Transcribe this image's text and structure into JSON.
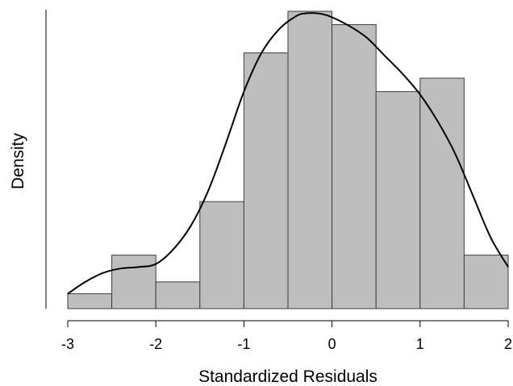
{
  "chart_data": {
    "type": "histogram",
    "xlabel": "Standardized Residuals",
    "ylabel": "Density",
    "xlim": [
      -3,
      2
    ],
    "ylim": [
      0,
      1
    ],
    "x_ticks": [
      "-3",
      "-2",
      "-1",
      "0",
      "1",
      "2"
    ],
    "y_ticks_labeled": false,
    "bins": [
      {
        "x0": -3.0,
        "x1": -2.5,
        "density": 0.05
      },
      {
        "x0": -2.5,
        "x1": -2.0,
        "density": 0.18
      },
      {
        "x0": -2.0,
        "x1": -1.5,
        "density": 0.09
      },
      {
        "x0": -1.5,
        "x1": -1.0,
        "density": 0.36
      },
      {
        "x0": -1.0,
        "x1": -0.5,
        "density": 0.86
      },
      {
        "x0": -0.5,
        "x1": 0.0,
        "density": 1.0
      },
      {
        "x0": 0.0,
        "x1": 0.5,
        "density": 0.955
      },
      {
        "x0": 0.5,
        "x1": 1.0,
        "density": 0.73
      },
      {
        "x0": 1.0,
        "x1": 1.5,
        "density": 0.775
      },
      {
        "x0": 1.5,
        "x1": 2.0,
        "density": 0.18
      }
    ],
    "density_curve": {
      "x": [
        -3.0,
        -2.8,
        -2.6,
        -2.4,
        -2.2,
        -2.0,
        -1.8,
        -1.6,
        -1.4,
        -1.2,
        -1.0,
        -0.8,
        -0.6,
        -0.4,
        -0.3,
        -0.2,
        -0.1,
        0.0,
        0.2,
        0.4,
        0.6,
        0.8,
        1.0,
        1.2,
        1.4,
        1.6,
        1.8,
        2.0
      ],
      "y": [
        0.05,
        0.09,
        0.12,
        0.135,
        0.14,
        0.15,
        0.2,
        0.28,
        0.4,
        0.56,
        0.73,
        0.86,
        0.94,
        0.985,
        0.993,
        0.994,
        0.99,
        0.98,
        0.95,
        0.91,
        0.85,
        0.79,
        0.72,
        0.63,
        0.52,
        0.38,
        0.24,
        0.14
      ]
    },
    "bar_color": "#BEBEBE",
    "bar_edge_color": "#3C3C3C",
    "curve_color": "#000000",
    "grid": false
  }
}
